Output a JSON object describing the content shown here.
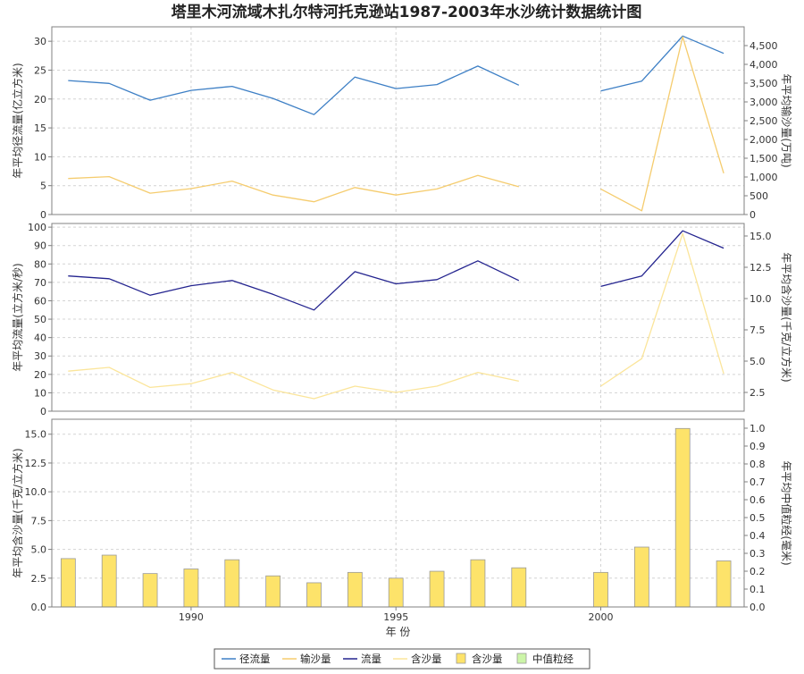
{
  "title": "塔里木河流域木扎尔特河托克逊站1987-2003年水沙统计数据统计图",
  "colors": {
    "runoff": "#3d7fc5",
    "sediment_load": "#f5cc6e",
    "flow": "#24248f",
    "concentration_line": "#fbe59a",
    "concentration_bar": "#fde36a",
    "bar_border": "#9a9a9a",
    "median_grain": "#ccf5a8",
    "grid": "#d4d4d4",
    "axis": "#808080"
  },
  "chart_data": [
    {
      "type": "line",
      "panel": "top",
      "x": [
        1987,
        1988,
        1989,
        1990,
        1991,
        1992,
        1993,
        1994,
        1995,
        1996,
        1997,
        1998,
        1999,
        2000,
        2001,
        2002,
        2003
      ],
      "series": [
        {
          "name": "径流量",
          "axis": "left",
          "color": "#3d7fc5",
          "values": [
            23.2,
            22.7,
            19.8,
            21.5,
            22.2,
            20.1,
            17.3,
            23.8,
            21.8,
            22.5,
            25.7,
            22.4,
            null,
            21.4,
            23.1,
            30.9,
            27.9
          ]
        },
        {
          "name": "输沙量",
          "axis": "right",
          "color": "#f5cc6e",
          "values": [
            960,
            1010,
            570,
            690,
            890,
            520,
            340,
            720,
            520,
            680,
            1040,
            740,
            null,
            680,
            100,
            4730,
            1100
          ]
        }
      ],
      "ylabel_left": "年平均径流量(亿立方米)",
      "ylabel_right": "年平均输沙量(万吨)",
      "ylim_left": [
        0,
        32.5
      ],
      "yticks_left": [
        0,
        5,
        10,
        15,
        20,
        25,
        30
      ],
      "ylim_right": [
        0,
        5000
      ],
      "yticks_right": [
        "0",
        "500",
        "1,000",
        "1,500",
        "2,000",
        "2,500",
        "3,000",
        "3,500",
        "4,000",
        "4,500"
      ]
    },
    {
      "type": "line",
      "panel": "middle",
      "x": [
        1987,
        1988,
        1989,
        1990,
        1991,
        1992,
        1993,
        1994,
        1995,
        1996,
        1997,
        1998,
        1999,
        2000,
        2001,
        2002,
        2003
      ],
      "series": [
        {
          "name": "流量",
          "axis": "left",
          "color": "#24248f",
          "values": [
            73.5,
            72,
            63,
            68.2,
            71,
            63.5,
            55,
            75.8,
            69.2,
            71.5,
            81.7,
            71,
            null,
            67.8,
            73.5,
            98,
            88.6
          ]
        },
        {
          "name": "含沙量",
          "axis": "right",
          "color": "#fbe59a",
          "values": [
            4.2,
            4.5,
            2.9,
            3.2,
            4.1,
            2.7,
            2.0,
            3.0,
            2.5,
            3.0,
            4.1,
            3.4,
            null,
            3.0,
            5.2,
            15.2,
            4.0
          ]
        }
      ],
      "ylabel_left": "年平均流量(立方米/秒)",
      "ylabel_right": "年平均含沙量(千克/立方米)",
      "ylim_left": [
        0,
        102
      ],
      "yticks_left": [
        0,
        10,
        20,
        30,
        40,
        50,
        60,
        70,
        80,
        90,
        100
      ],
      "ylim_right": [
        1.0,
        16.0
      ],
      "yticks_right": [
        "2.5",
        "5.0",
        "7.5",
        "10.0",
        "12.5",
        "15.0"
      ]
    },
    {
      "type": "bar",
      "panel": "bottom",
      "x": [
        1987,
        1988,
        1989,
        1990,
        1991,
        1992,
        1993,
        1994,
        1995,
        1996,
        1997,
        1998,
        1999,
        2000,
        2001,
        2002,
        2003
      ],
      "series": [
        {
          "name": "含沙量",
          "axis": "left",
          "color": "#fde36a",
          "values": [
            4.2,
            4.5,
            2.9,
            3.3,
            4.1,
            2.7,
            2.1,
            3.0,
            2.5,
            3.1,
            4.1,
            3.4,
            null,
            3.0,
            5.2,
            15.5,
            4.0
          ]
        },
        {
          "name": "中值粒经",
          "axis": "right",
          "color": "#ccf5a8",
          "values": [
            null,
            null,
            null,
            null,
            null,
            null,
            null,
            null,
            null,
            null,
            null,
            null,
            null,
            null,
            null,
            null,
            null
          ]
        }
      ],
      "ylabel_left": "年平均含沙量(千克/立方米)",
      "ylabel_right": "年平均中值粒经(毫米)",
      "xlabel": "年 份",
      "xticks": [
        "1990",
        "1995",
        "2000"
      ],
      "ylim_left": [
        0,
        16.3
      ],
      "yticks_left": [
        "0.0",
        "2.5",
        "5.0",
        "7.5",
        "10.0",
        "12.5",
        "15.0"
      ],
      "ylim_right": [
        0,
        1.05
      ],
      "yticks_right": [
        "0.0",
        "0.1",
        "0.2",
        "0.3",
        "0.4",
        "0.5",
        "0.6",
        "0.7",
        "0.8",
        "0.9",
        "1.0"
      ],
      "xlim": [
        1986.6,
        2003.5
      ]
    }
  ],
  "legend": {
    "placement": "bottom-center",
    "items": [
      {
        "label": "径流量",
        "kind": "line",
        "color": "#3d7fc5"
      },
      {
        "label": "输沙量",
        "kind": "line",
        "color": "#f5cc6e"
      },
      {
        "label": "流量",
        "kind": "line",
        "color": "#24248f"
      },
      {
        "label": "含沙量",
        "kind": "line",
        "color": "#fbe59a"
      },
      {
        "label": "含沙量",
        "kind": "box",
        "color": "#fde36a"
      },
      {
        "label": "中值粒经",
        "kind": "box",
        "color": "#ccf5a8"
      }
    ]
  }
}
